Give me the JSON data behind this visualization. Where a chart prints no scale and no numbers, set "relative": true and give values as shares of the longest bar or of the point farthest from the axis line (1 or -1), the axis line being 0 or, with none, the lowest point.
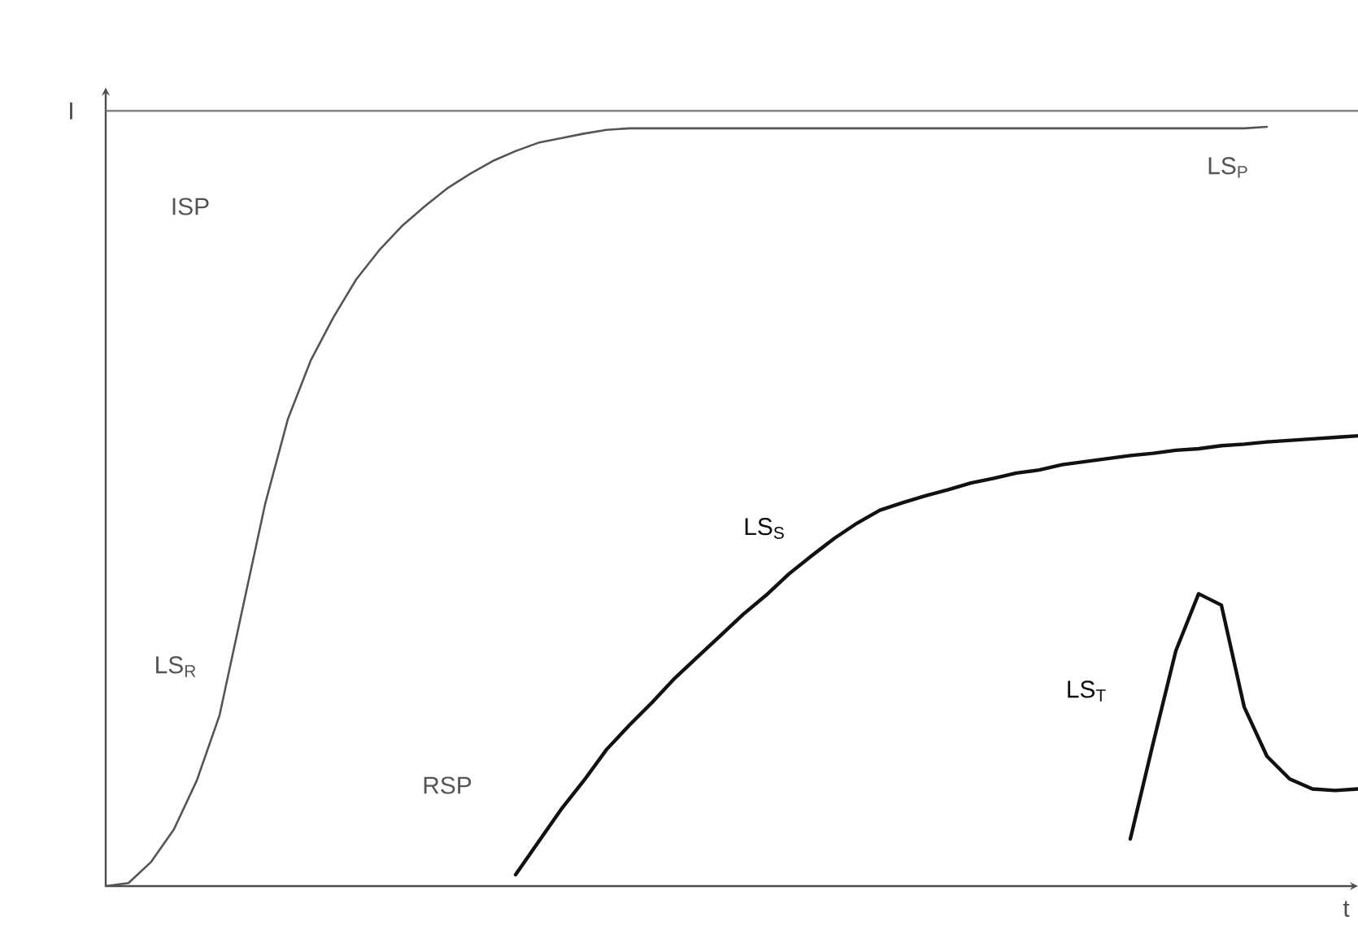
{
  "chart_data": {
    "type": "line",
    "relative": true,
    "xlabel": "t",
    "marker": "none",
    "line_style": "solid",
    "categories": [
      null,
      null,
      null,
      null,
      null,
      null,
      null,
      null,
      null,
      null,
      null,
      null,
      null,
      null,
      null,
      null,
      null,
      null,
      null,
      null,
      null,
      null,
      null,
      null,
      null,
      null,
      null,
      null,
      null,
      null,
      null,
      null,
      null,
      null,
      null,
      null,
      null,
      null,
      null,
      null,
      null,
      null,
      null,
      null,
      null,
      null,
      null,
      null,
      null,
      null,
      null,
      null,
      null,
      null,
      null,
      null
    ],
    "series": [
      {
        "name": "LS$_{P}$",
        "color": "#555555",
        "values": [
          0,
          0.004,
          0.032,
          0.075,
          0.139,
          0.225,
          0.364,
          0.503,
          0.615,
          0.692,
          0.749,
          0.799,
          0.837,
          0.869,
          0.895,
          0.919,
          0.938,
          0.955,
          0.968,
          0.979,
          0.985,
          0.991,
          0.996,
          0.998,
          0.998,
          0.998,
          0.998,
          0.998,
          0.998,
          0.998,
          0.998,
          0.998,
          0.998,
          0.998,
          0.998,
          0.998,
          0.998,
          0.998,
          0.998,
          0.998,
          0.998,
          0.998,
          0.998,
          0.998,
          0.998,
          0.998,
          0.998,
          0.998,
          0.998,
          0.998,
          0.998,
          1,
          null,
          null,
          null,
          null
        ]
      },
      {
        "name": "LS$_{S}$",
        "color": "#111111",
        "values": [
          null,
          null,
          null,
          null,
          null,
          null,
          null,
          null,
          null,
          null,
          null,
          null,
          null,
          null,
          null,
          null,
          null,
          null,
          0.015,
          0.058,
          0.101,
          0.139,
          0.18,
          0.212,
          0.242,
          0.274,
          0.302,
          0.33,
          0.358,
          0.383,
          0.411,
          0.435,
          0.458,
          0.478,
          0.495,
          0.505,
          0.514,
          0.522,
          0.531,
          0.537,
          0.544,
          0.548,
          0.555,
          0.559,
          0.563,
          0.567,
          0.57,
          0.574,
          0.576,
          0.58,
          0.582,
          0.585,
          0.587,
          0.589,
          0.591,
          0.593
        ]
      },
      {
        "name": "LS$_{T}$",
        "color": "#111111",
        "values": [
          null,
          null,
          null,
          null,
          null,
          null,
          null,
          null,
          null,
          null,
          null,
          null,
          null,
          null,
          null,
          null,
          null,
          null,
          null,
          null,
          null,
          null,
          null,
          null,
          null,
          null,
          null,
          null,
          null,
          null,
          null,
          null,
          null,
          null,
          null,
          null,
          null,
          null,
          null,
          null,
          null,
          null,
          null,
          null,
          null,
          0.062,
          0.188,
          0.31,
          0.385,
          0.37,
          0.236,
          0.171,
          0.141,
          0.128,
          0.126,
          0.128
        ]
      }
    ],
    "ref_lines": [
      {
        "axis": "y",
        "value": 1.021,
        "label": "I",
        "color": "#777777"
      }
    ],
    "annotations": [
      "ISP",
      "LS$_{R}$",
      "RSP"
    ]
  }
}
